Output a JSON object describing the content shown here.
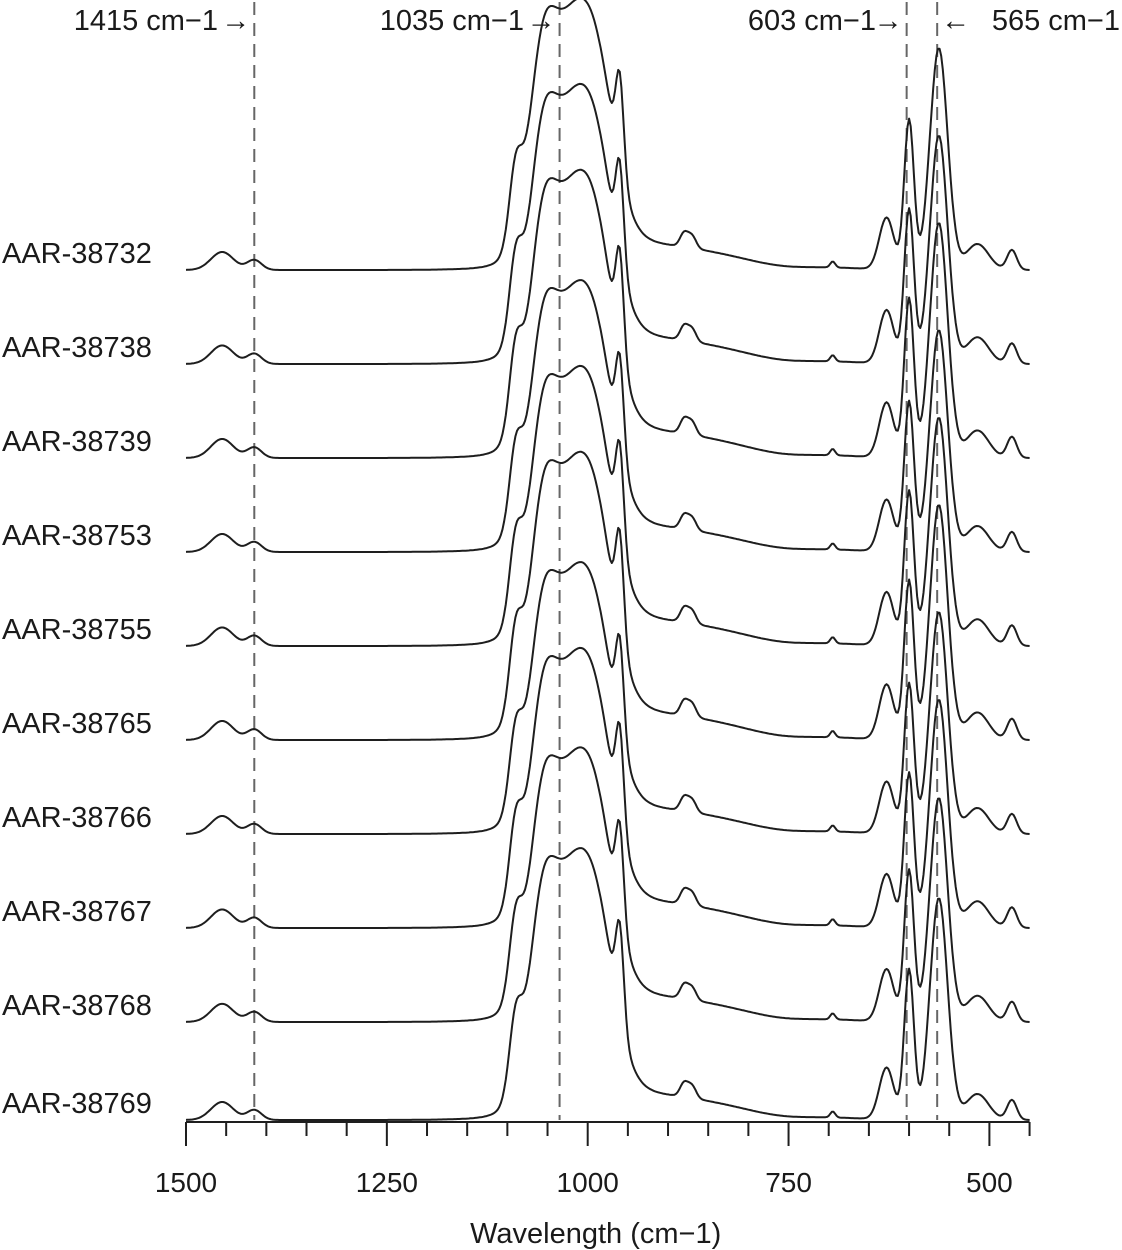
{
  "chart_data": {
    "type": "line",
    "title": "",
    "xlabel": "Wavelength (cm−1)",
    "ylabel": "",
    "xlim": [
      1500,
      450
    ],
    "x_reversed": true,
    "x_ticks": [
      1500,
      1250,
      1000,
      750,
      500
    ],
    "grid": false,
    "colors": {
      "line": "#1e1e1e",
      "reference": "#666666"
    },
    "reference_lines": [
      {
        "x": 1415,
        "label": "1415 cm−1",
        "arrow": "→"
      },
      {
        "x": 1035,
        "label": "1035 cm−1",
        "arrow": "→"
      },
      {
        "x": 603,
        "label": "603 cm−1",
        "arrow": "→"
      },
      {
        "x": 565,
        "label": "565 cm−1",
        "arrow": "←"
      }
    ],
    "series": [
      {
        "name": "AAR-38732"
      },
      {
        "name": "AAR-38738"
      },
      {
        "name": "AAR-38739"
      },
      {
        "name": "AAR-38753"
      },
      {
        "name": "AAR-38755"
      },
      {
        "name": "AAR-38765"
      },
      {
        "name": "AAR-38766"
      },
      {
        "name": "AAR-38767"
      },
      {
        "name": "AAR-38768"
      },
      {
        "name": "AAR-38769"
      }
    ]
  }
}
